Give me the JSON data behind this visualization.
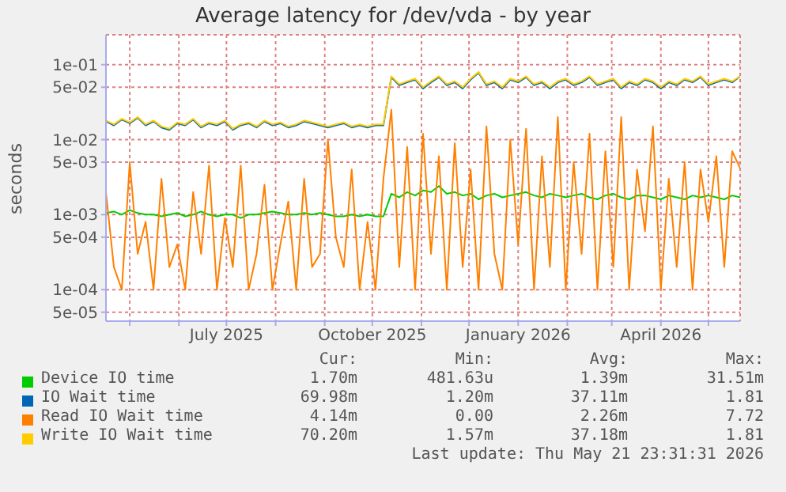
{
  "chart_data": {
    "type": "line",
    "title": "Average latency for /dev/vda - by year",
    "ylabel": "seconds",
    "log": true,
    "grid": true,
    "legend": "bottom",
    "marker": "none",
    "line_style": "solid",
    "xlim": [
      "2025-04-16",
      "2026-05-21"
    ],
    "xticks": [
      {
        "value": "2025-05-01",
        "label": null
      },
      {
        "value": "2025-06-01",
        "label": null
      },
      {
        "value": "2025-07-01",
        "label": "July 2025"
      },
      {
        "value": "2025-08-01",
        "label": null
      },
      {
        "value": "2025-09-01",
        "label": null
      },
      {
        "value": "2025-10-01",
        "label": "October 2025"
      },
      {
        "value": "2025-11-01",
        "label": null
      },
      {
        "value": "2025-12-01",
        "label": null
      },
      {
        "value": "2026-01-01",
        "label": "January 2026"
      },
      {
        "value": "2026-02-01",
        "label": null
      },
      {
        "value": "2026-03-01",
        "label": null
      },
      {
        "value": "2026-04-01",
        "label": "April 2026"
      },
      {
        "value": "2026-05-01",
        "label": null
      }
    ],
    "ylim": [
      3.8e-05,
      0.25
    ],
    "yticks": [
      {
        "value": 5e-05,
        "label": "5e-05"
      },
      {
        "value": 0.0001,
        "label": "1e-04"
      },
      {
        "value": 0.0005,
        "label": "5e-04"
      },
      {
        "value": 0.001,
        "label": "1e-03"
      },
      {
        "value": 0.005,
        "label": "5e-03"
      },
      {
        "value": 0.01,
        "label": "1e-02"
      },
      {
        "value": 0.05,
        "label": "5e-02"
      },
      {
        "value": 0.1,
        "label": "1e-01"
      }
    ],
    "x": [
      "2025-04-16",
      "2025-04-21",
      "2025-04-26",
      "2025-05-01",
      "2025-05-06",
      "2025-05-11",
      "2025-05-16",
      "2025-05-21",
      "2025-05-26",
      "2025-05-31",
      "2025-06-05",
      "2025-06-10",
      "2025-06-15",
      "2025-06-20",
      "2025-06-25",
      "2025-06-30",
      "2025-07-05",
      "2025-07-10",
      "2025-07-15",
      "2025-07-20",
      "2025-07-25",
      "2025-07-30",
      "2025-08-04",
      "2025-08-09",
      "2025-08-14",
      "2025-08-19",
      "2025-08-24",
      "2025-08-29",
      "2025-09-03",
      "2025-09-08",
      "2025-09-13",
      "2025-09-18",
      "2025-09-23",
      "2025-09-28",
      "2025-10-03",
      "2025-10-08",
      "2025-10-13",
      "2025-10-18",
      "2025-10-23",
      "2025-10-28",
      "2025-11-02",
      "2025-11-07",
      "2025-11-12",
      "2025-11-17",
      "2025-11-22",
      "2025-11-27",
      "2025-12-02",
      "2025-12-07",
      "2025-12-12",
      "2025-12-17",
      "2025-12-22",
      "2025-12-27",
      "2026-01-01",
      "2026-01-06",
      "2026-01-11",
      "2026-01-16",
      "2026-01-21",
      "2026-01-26",
      "2026-01-31",
      "2026-02-05",
      "2026-02-10",
      "2026-02-15",
      "2026-02-20",
      "2026-02-25",
      "2026-03-02",
      "2026-03-07",
      "2026-03-12",
      "2026-03-17",
      "2026-03-22",
      "2026-03-27",
      "2026-04-01",
      "2026-04-06",
      "2026-04-11",
      "2026-04-16",
      "2026-04-21",
      "2026-04-26",
      "2026-05-01",
      "2026-05-06",
      "2026-05-11",
      "2026-05-16",
      "2026-05-21"
    ],
    "series": [
      {
        "name": "Device IO time",
        "color": "#00cc00",
        "values": [
          0.00105,
          0.0011,
          0.001,
          0.00115,
          0.00105,
          0.001,
          0.001,
          0.00095,
          0.001,
          0.00105,
          0.00095,
          0.001,
          0.0011,
          0.001,
          0.00095,
          0.001,
          0.001,
          0.0009,
          0.001,
          0.001,
          0.00105,
          0.0011,
          0.00105,
          0.001,
          0.001,
          0.00105,
          0.001,
          0.00105,
          0.001,
          0.00095,
          0.00095,
          0.001,
          0.00095,
          0.001,
          0.00095,
          0.00095,
          0.0019,
          0.0017,
          0.002,
          0.0018,
          0.0021,
          0.002,
          0.0024,
          0.0019,
          0.002,
          0.0018,
          0.0019,
          0.0016,
          0.0018,
          0.0019,
          0.0017,
          0.0018,
          0.0019,
          0.002,
          0.0018,
          0.0017,
          0.0019,
          0.0018,
          0.0017,
          0.0018,
          0.0019,
          0.0017,
          0.0016,
          0.0018,
          0.0019,
          0.0017,
          0.0016,
          0.0018,
          0.0018,
          0.0017,
          0.0016,
          0.0018,
          0.0017,
          0.0016,
          0.0018,
          0.0017,
          0.0018,
          0.0017,
          0.0016,
          0.0018,
          0.0017
        ]
      },
      {
        "name": "IO Wait time",
        "color": "#0066b3",
        "values": [
          0.0175,
          0.0155,
          0.0185,
          0.0165,
          0.0195,
          0.0155,
          0.0175,
          0.0145,
          0.0135,
          0.0165,
          0.0155,
          0.0185,
          0.0145,
          0.0165,
          0.0155,
          0.0175,
          0.0135,
          0.0155,
          0.0165,
          0.0145,
          0.0175,
          0.0155,
          0.0165,
          0.0145,
          0.0155,
          0.0175,
          0.0165,
          0.0155,
          0.0145,
          0.0155,
          0.0165,
          0.0145,
          0.0155,
          0.0145,
          0.0155,
          0.0155,
          0.068,
          0.053,
          0.058,
          0.063,
          0.048,
          0.058,
          0.068,
          0.053,
          0.058,
          0.048,
          0.063,
          0.078,
          0.053,
          0.058,
          0.048,
          0.063,
          0.058,
          0.068,
          0.053,
          0.058,
          0.048,
          0.058,
          0.063,
          0.053,
          0.058,
          0.068,
          0.053,
          0.058,
          0.063,
          0.048,
          0.058,
          0.053,
          0.063,
          0.058,
          0.048,
          0.058,
          0.053,
          0.063,
          0.058,
          0.068,
          0.053,
          0.058,
          0.063,
          0.058,
          0.06998
        ]
      },
      {
        "name": "Read IO Wait time",
        "color": "#ff8000",
        "values": [
          0.002,
          0.0002,
          0.0001,
          0.005,
          0.0003,
          0.0008,
          0.0001,
          0.003,
          0.0002,
          0.0004,
          0.0001,
          0.002,
          0.0003,
          0.0045,
          0.0001,
          0.0009,
          0.0002,
          0.0045,
          0.0001,
          0.0003,
          0.0025,
          0.0001,
          0.0004,
          0.0015,
          0.0001,
          0.003,
          0.0002,
          0.0003,
          0.01,
          0.0005,
          0.0002,
          0.004,
          0.0001,
          0.0008,
          0.0001,
          0.003,
          0.025,
          0.0002,
          0.008,
          0.0001,
          0.012,
          0.0003,
          0.006,
          0.0001,
          0.009,
          0.0002,
          0.004,
          0.0001,
          0.015,
          0.0003,
          0.0001,
          0.01,
          0.0004,
          0.014,
          0.0001,
          0.006,
          0.0002,
          0.02,
          0.0001,
          0.005,
          0.0003,
          0.012,
          0.0001,
          0.007,
          0.0002,
          0.02,
          0.0001,
          0.004,
          0.0006,
          0.015,
          0.0001,
          0.003,
          0.0002,
          0.005,
          0.0001,
          0.004,
          0.0008,
          0.006,
          0.0002,
          0.007,
          0.00414
        ]
      },
      {
        "name": "Write IO Wait time",
        "color": "#ffcc00",
        "values": [
          0.018,
          0.016,
          0.019,
          0.017,
          0.02,
          0.016,
          0.018,
          0.015,
          0.014,
          0.017,
          0.016,
          0.019,
          0.015,
          0.017,
          0.016,
          0.018,
          0.014,
          0.016,
          0.017,
          0.015,
          0.018,
          0.016,
          0.017,
          0.015,
          0.016,
          0.018,
          0.017,
          0.016,
          0.015,
          0.016,
          0.017,
          0.015,
          0.016,
          0.015,
          0.016,
          0.016,
          0.07,
          0.055,
          0.06,
          0.065,
          0.05,
          0.06,
          0.07,
          0.055,
          0.06,
          0.05,
          0.065,
          0.08,
          0.055,
          0.06,
          0.05,
          0.065,
          0.06,
          0.07,
          0.055,
          0.06,
          0.05,
          0.06,
          0.065,
          0.055,
          0.06,
          0.07,
          0.055,
          0.06,
          0.065,
          0.05,
          0.06,
          0.055,
          0.065,
          0.06,
          0.05,
          0.06,
          0.055,
          0.065,
          0.06,
          0.07,
          0.055,
          0.06,
          0.065,
          0.06,
          0.0702
        ]
      }
    ],
    "annotations": [
      "Cur:",
      "Min:",
      "Avg:",
      "Max:",
      "1.70m",
      "481.63u",
      "1.39m",
      "31.51m",
      "69.98m",
      "1.20m",
      "37.11m",
      "1.81",
      "4.14m",
      "0.00",
      "2.26m",
      "7.72",
      "70.20m",
      "1.57m",
      "37.18m",
      "1.81",
      "Last update: Thu May 21 23:31:31 2026"
    ]
  }
}
